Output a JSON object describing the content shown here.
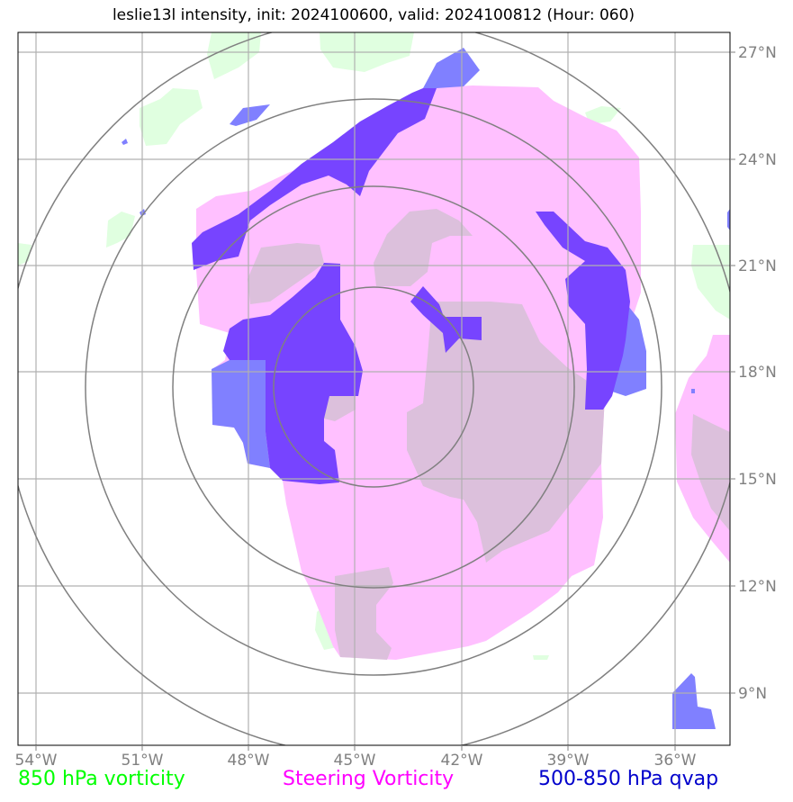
{
  "title": "leslie13l intensity, init: 2024100600, valid: 2024100812 (Hour: 060)",
  "axes": {
    "x_ticks": [
      "54°W",
      "51°W",
      "48°W",
      "45°W",
      "42°W",
      "39°W",
      "36°W"
    ],
    "y_ticks": [
      "27°N",
      "24°N",
      "21°N",
      "18°N",
      "15°N",
      "12°N",
      "9°N"
    ]
  },
  "legend": {
    "vort850": {
      "label": "850 hPa vorticity",
      "color": "#00ff00"
    },
    "steering": {
      "label": "Steering Vorticity",
      "color": "#ff00ff"
    },
    "qvap": {
      "label": "500-850 hPa qvap",
      "color": "#0000cc"
    }
  },
  "colors": {
    "green_fill": "#e0ffe0",
    "pink_fill": "#ffc0ff",
    "mauve_fill": "#dcc0dc",
    "blue_fill": "#8080ff",
    "purple_fill": "#7744ff",
    "grid": "#b0b0b0",
    "range_rings": "#808080"
  }
}
